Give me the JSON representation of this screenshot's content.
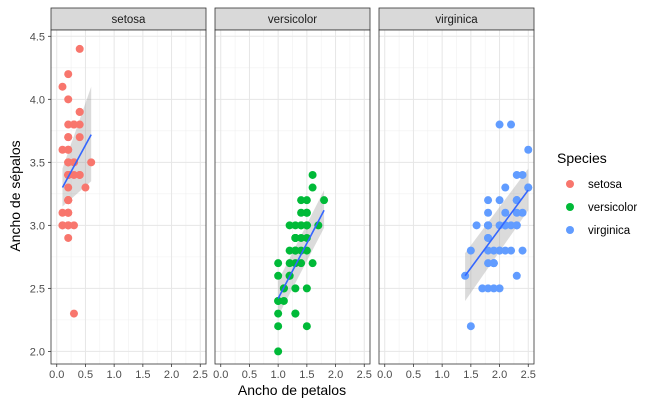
{
  "chart_data": {
    "type": "scatter",
    "xlabel": "Ancho de petalos",
    "ylabel": "Ancho de sépalos",
    "xlim": [
      -0.1,
      2.6
    ],
    "ylim": [
      1.9,
      4.55
    ],
    "x_ticks": [
      "0.0",
      "0.5",
      "1.0",
      "1.5",
      "2.0",
      "2.5"
    ],
    "y_ticks": [
      "2.0",
      "2.5",
      "3.0",
      "3.5",
      "4.0",
      "4.5"
    ],
    "x_tick_values": [
      0.0,
      0.5,
      1.0,
      1.5,
      2.0,
      2.5
    ],
    "y_tick_values": [
      2.0,
      2.5,
      3.0,
      3.5,
      4.0,
      4.5
    ],
    "facet_by": "Species",
    "legend": {
      "title": "Species",
      "position": "right"
    },
    "grid": true,
    "series": [
      {
        "name": "setosa",
        "color": "#F8766D",
        "smooth": {
          "x": [
            0.1,
            0.6
          ],
          "y": [
            3.3,
            3.72
          ],
          "band_lo": [
            3.15,
            3.35
          ],
          "band_hi": [
            3.45,
            4.1
          ]
        },
        "points": [
          [
            0.2,
            3.5
          ],
          [
            0.2,
            3.0
          ],
          [
            0.2,
            3.2
          ],
          [
            0.2,
            3.1
          ],
          [
            0.2,
            3.6
          ],
          [
            0.4,
            3.9
          ],
          [
            0.3,
            3.4
          ],
          [
            0.2,
            3.4
          ],
          [
            0.2,
            2.9
          ],
          [
            0.1,
            3.1
          ],
          [
            0.2,
            3.7
          ],
          [
            0.2,
            3.4
          ],
          [
            0.1,
            3.0
          ],
          [
            0.1,
            3.0
          ],
          [
            0.2,
            4.0
          ],
          [
            0.4,
            4.4
          ],
          [
            0.4,
            3.9
          ],
          [
            0.3,
            3.5
          ],
          [
            0.3,
            3.8
          ],
          [
            0.3,
            3.8
          ],
          [
            0.2,
            3.4
          ],
          [
            0.4,
            3.7
          ],
          [
            0.2,
            3.6
          ],
          [
            0.5,
            3.3
          ],
          [
            0.2,
            3.4
          ],
          [
            0.2,
            3.0
          ],
          [
            0.4,
            3.4
          ],
          [
            0.2,
            3.5
          ],
          [
            0.2,
            3.4
          ],
          [
            0.2,
            3.2
          ],
          [
            0.2,
            3.1
          ],
          [
            0.4,
            3.4
          ],
          [
            0.1,
            4.1
          ],
          [
            0.2,
            4.2
          ],
          [
            0.2,
            3.1
          ],
          [
            0.2,
            3.2
          ],
          [
            0.2,
            3.5
          ],
          [
            0.1,
            3.6
          ],
          [
            0.2,
            3.0
          ],
          [
            0.2,
            3.4
          ],
          [
            0.3,
            3.5
          ],
          [
            0.3,
            2.3
          ],
          [
            0.2,
            3.2
          ],
          [
            0.6,
            3.5
          ],
          [
            0.4,
            3.8
          ],
          [
            0.3,
            3.0
          ],
          [
            0.2,
            3.8
          ],
          [
            0.2,
            3.2
          ],
          [
            0.2,
            3.7
          ],
          [
            0.2,
            3.3
          ]
        ]
      },
      {
        "name": "versicolor",
        "color": "#00BA38",
        "smooth": {
          "x": [
            1.0,
            1.8
          ],
          "y": [
            2.42,
            3.12
          ],
          "band_lo": [
            2.28,
            2.98
          ],
          "band_hi": [
            2.56,
            3.28
          ]
        },
        "points": [
          [
            1.4,
            3.2
          ],
          [
            1.5,
            3.2
          ],
          [
            1.5,
            3.1
          ],
          [
            1.3,
            2.3
          ],
          [
            1.5,
            2.8
          ],
          [
            1.3,
            2.8
          ],
          [
            1.6,
            3.3
          ],
          [
            1.0,
            2.4
          ],
          [
            1.3,
            2.9
          ],
          [
            1.4,
            2.7
          ],
          [
            1.0,
            2.0
          ],
          [
            1.5,
            3.0
          ],
          [
            1.0,
            2.2
          ],
          [
            1.4,
            2.9
          ],
          [
            1.3,
            2.9
          ],
          [
            1.4,
            3.1
          ],
          [
            1.5,
            3.0
          ],
          [
            1.0,
            2.7
          ],
          [
            1.5,
            2.2
          ],
          [
            1.1,
            2.5
          ],
          [
            1.8,
            3.2
          ],
          [
            1.3,
            2.8
          ],
          [
            1.5,
            2.5
          ],
          [
            1.2,
            2.8
          ],
          [
            1.3,
            2.9
          ],
          [
            1.4,
            3.0
          ],
          [
            1.4,
            2.8
          ],
          [
            1.7,
            3.0
          ],
          [
            1.5,
            2.9
          ],
          [
            1.0,
            2.6
          ],
          [
            1.1,
            2.4
          ],
          [
            1.0,
            2.4
          ],
          [
            1.2,
            2.7
          ],
          [
            1.6,
            2.7
          ],
          [
            1.5,
            3.0
          ],
          [
            1.6,
            3.4
          ],
          [
            1.5,
            3.1
          ],
          [
            1.3,
            2.3
          ],
          [
            1.3,
            3.0
          ],
          [
            1.3,
            2.5
          ],
          [
            1.2,
            2.6
          ],
          [
            1.4,
            3.0
          ],
          [
            1.2,
            2.6
          ],
          [
            1.0,
            2.3
          ],
          [
            1.3,
            2.7
          ],
          [
            1.2,
            3.0
          ],
          [
            1.3,
            2.9
          ],
          [
            1.3,
            2.9
          ],
          [
            1.1,
            2.5
          ],
          [
            1.3,
            2.8
          ]
        ]
      },
      {
        "name": "virginica",
        "color": "#619CFF",
        "smooth": {
          "x": [
            1.4,
            2.5
          ],
          "y": [
            2.6,
            3.28
          ],
          "band_lo": [
            2.4,
            3.12
          ],
          "band_hi": [
            2.78,
            3.45
          ]
        },
        "points": [
          [
            2.5,
            3.3
          ],
          [
            1.9,
            2.7
          ],
          [
            2.1,
            3.0
          ],
          [
            1.8,
            2.9
          ],
          [
            2.2,
            3.0
          ],
          [
            2.1,
            3.0
          ],
          [
            1.7,
            2.5
          ],
          [
            1.8,
            2.9
          ],
          [
            1.8,
            2.5
          ],
          [
            2.5,
            3.6
          ],
          [
            2.0,
            3.2
          ],
          [
            1.9,
            2.7
          ],
          [
            2.1,
            3.0
          ],
          [
            2.0,
            2.5
          ],
          [
            2.4,
            2.8
          ],
          [
            2.3,
            3.2
          ],
          [
            1.8,
            3.0
          ],
          [
            2.2,
            3.8
          ],
          [
            2.3,
            2.6
          ],
          [
            1.5,
            2.2
          ],
          [
            2.3,
            3.2
          ],
          [
            2.0,
            2.8
          ],
          [
            2.0,
            2.8
          ],
          [
            1.8,
            2.7
          ],
          [
            2.1,
            3.3
          ],
          [
            1.8,
            3.2
          ],
          [
            1.8,
            2.8
          ],
          [
            1.8,
            3.0
          ],
          [
            2.1,
            2.8
          ],
          [
            1.6,
            3.0
          ],
          [
            1.9,
            2.8
          ],
          [
            2.0,
            3.8
          ],
          [
            2.2,
            2.8
          ],
          [
            1.5,
            2.8
          ],
          [
            1.4,
            2.6
          ],
          [
            2.3,
            3.0
          ],
          [
            2.4,
            3.4
          ],
          [
            1.8,
            3.1
          ],
          [
            1.8,
            3.0
          ],
          [
            2.1,
            3.1
          ],
          [
            2.4,
            3.1
          ],
          [
            2.3,
            3.1
          ],
          [
            1.9,
            2.7
          ],
          [
            2.3,
            3.2
          ],
          [
            2.5,
            3.3
          ],
          [
            2.3,
            3.0
          ],
          [
            1.9,
            2.5
          ],
          [
            2.0,
            3.0
          ],
          [
            2.3,
            3.4
          ],
          [
            1.8,
            3.0
          ]
        ]
      }
    ]
  }
}
